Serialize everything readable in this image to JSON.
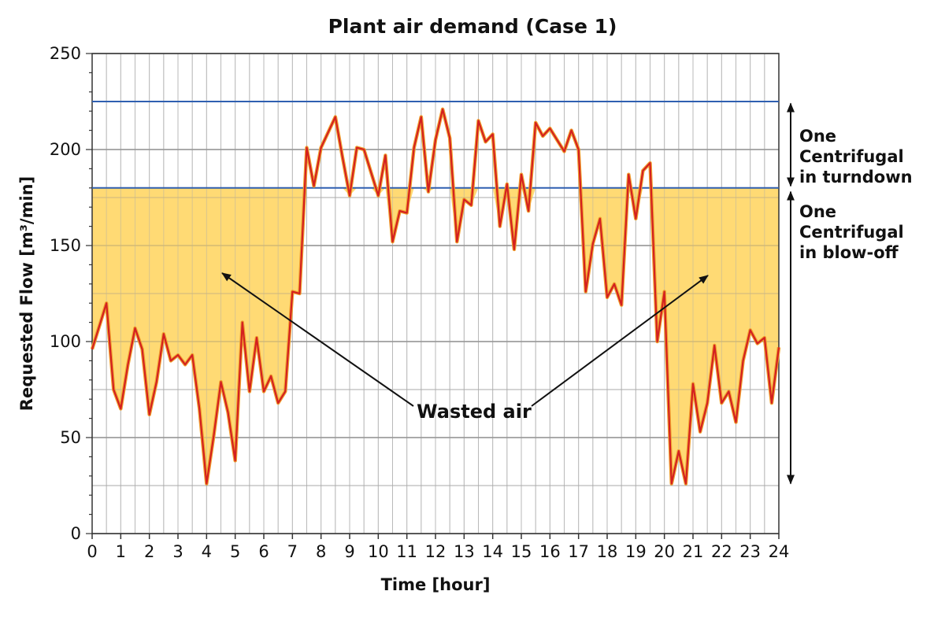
{
  "chart_data": {
    "type": "line",
    "title": "Plant air demand (Case 1)",
    "xlabel": "Time [hour]",
    "ylabel": "Requested Flow [m³/min]",
    "xlim": [
      0,
      24
    ],
    "ylim": [
      0,
      250
    ],
    "xticks": [
      0,
      1,
      2,
      3,
      4,
      5,
      6,
      7,
      8,
      9,
      10,
      11,
      12,
      13,
      14,
      15,
      16,
      17,
      18,
      19,
      20,
      21,
      22,
      23,
      24
    ],
    "yticks": [
      0,
      50,
      100,
      150,
      200,
      250
    ],
    "grid": true,
    "reference_lines": [
      {
        "y": 225
      },
      {
        "y": 180
      }
    ],
    "shaded_region": {
      "below": 180,
      "label": "Wasted air",
      "color": "#ffd35c"
    },
    "annotations": [
      {
        "text": "Wasted air"
      },
      {
        "text": "One Centrifugal in turndown",
        "lines": [
          "One",
          "Centrifugal",
          "in turndown"
        ],
        "y_range": [
          180,
          225
        ]
      },
      {
        "text": "One Centrifugal in blow-off",
        "lines": [
          "One",
          "Centrifugal",
          "in blow-off"
        ],
        "y_range": [
          25,
          180
        ]
      }
    ],
    "series": [
      {
        "color": "#d42020",
        "x": [
          0,
          0.5,
          0.75,
          1,
          1.25,
          1.5,
          1.75,
          2,
          2.25,
          2.5,
          2.75,
          3,
          3.25,
          3.5,
          3.75,
          4,
          4.25,
          4.5,
          4.75,
          5,
          5.25,
          5.5,
          5.75,
          6,
          6.25,
          6.5,
          6.75,
          7,
          7.25,
          7.5,
          7.75,
          8,
          8.25,
          8.5,
          8.75,
          9,
          9.25,
          9.5,
          9.75,
          10,
          10.25,
          10.5,
          10.75,
          11,
          11.25,
          11.5,
          11.75,
          12,
          12.25,
          12.5,
          12.75,
          13,
          13.25,
          13.5,
          13.75,
          14,
          14.25,
          14.5,
          14.75,
          15,
          15.25,
          15.5,
          15.75,
          16,
          16.25,
          16.5,
          16.75,
          17,
          17.25,
          17.5,
          17.75,
          18,
          18.25,
          18.5,
          18.75,
          19,
          19.25,
          19.5,
          19.75,
          20,
          20.25,
          20.5,
          20.75,
          21,
          21.25,
          21.5,
          21.75,
          22,
          22.25,
          22.5,
          22.75,
          23,
          23.25,
          23.5,
          23.75,
          24
        ],
        "y": [
          96,
          120,
          75,
          65,
          88,
          107,
          96,
          62,
          79,
          104,
          90,
          93,
          88,
          93,
          65,
          26,
          51,
          79,
          63,
          38,
          110,
          74,
          102,
          74,
          82,
          68,
          74,
          126,
          125,
          201,
          181,
          201,
          209,
          217,
          196,
          176,
          201,
          200,
          188,
          176,
          197,
          152,
          168,
          167,
          201,
          217,
          178,
          205,
          221,
          206,
          152,
          174,
          171,
          215,
          204,
          208,
          160,
          182,
          148,
          187,
          168,
          214,
          207,
          211,
          205,
          199,
          210,
          200,
          126,
          151,
          164,
          123,
          130,
          119,
          187,
          164,
          189,
          193,
          100,
          126,
          26,
          43,
          26,
          78,
          53,
          68,
          98,
          68,
          74,
          58,
          90,
          106,
          99,
          102,
          68,
          97
        ]
      }
    ]
  }
}
